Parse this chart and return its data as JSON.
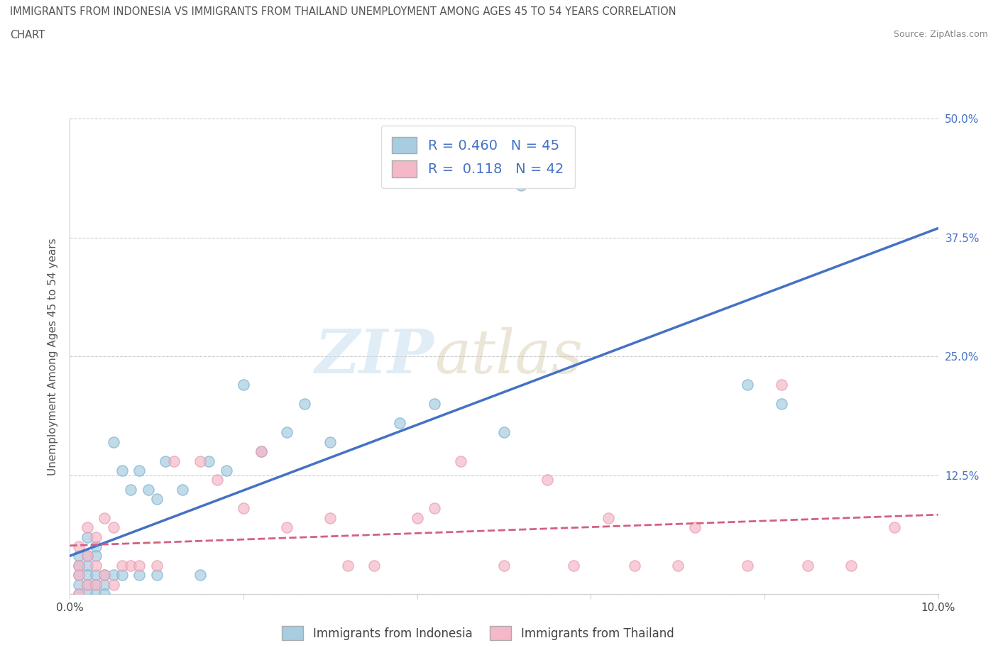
{
  "title_line1": "IMMIGRANTS FROM INDONESIA VS IMMIGRANTS FROM THAILAND UNEMPLOYMENT AMONG AGES 45 TO 54 YEARS CORRELATION",
  "title_line2": "CHART",
  "source": "Source: ZipAtlas.com",
  "ylabel_label": "Unemployment Among Ages 45 to 54 years",
  "xlim": [
    0.0,
    0.1
  ],
  "ylim": [
    0.0,
    0.5
  ],
  "xticks": [
    0.0,
    0.02,
    0.04,
    0.06,
    0.08,
    0.1
  ],
  "yticks": [
    0.0,
    0.125,
    0.25,
    0.375,
    0.5
  ],
  "ytick_labels": [
    "",
    "12.5%",
    "25.0%",
    "37.5%",
    "50.0%"
  ],
  "indonesia_color": "#a8cce0",
  "thailand_color": "#f4b8c8",
  "indonesia_edge_color": "#7ab0d0",
  "thailand_edge_color": "#e898b0",
  "indonesia_line_color": "#4472c4",
  "thailand_line_color": "#d46080",
  "legend_line1": "R = 0.460   N = 45",
  "legend_line2": "R =  0.118   N = 42",
  "watermark_zip": "ZIP",
  "watermark_atlas": "atlas",
  "indonesia_label": "Immigrants from Indonesia",
  "thailand_label": "Immigrants from Thailand",
  "indonesia_x": [
    0.001,
    0.001,
    0.001,
    0.001,
    0.001,
    0.002,
    0.002,
    0.002,
    0.002,
    0.002,
    0.002,
    0.003,
    0.003,
    0.003,
    0.003,
    0.003,
    0.004,
    0.004,
    0.004,
    0.005,
    0.005,
    0.006,
    0.006,
    0.007,
    0.008,
    0.008,
    0.009,
    0.01,
    0.01,
    0.011,
    0.013,
    0.015,
    0.016,
    0.018,
    0.02,
    0.022,
    0.025,
    0.027,
    0.03,
    0.038,
    0.042,
    0.05,
    0.052,
    0.078,
    0.082
  ],
  "indonesia_y": [
    0.04,
    0.03,
    0.02,
    0.01,
    0.0,
    0.06,
    0.04,
    0.03,
    0.02,
    0.01,
    0.0,
    0.05,
    0.04,
    0.02,
    0.01,
    0.0,
    0.02,
    0.01,
    0.0,
    0.16,
    0.02,
    0.13,
    0.02,
    0.11,
    0.13,
    0.02,
    0.11,
    0.1,
    0.02,
    0.14,
    0.11,
    0.02,
    0.14,
    0.13,
    0.22,
    0.15,
    0.17,
    0.2,
    0.16,
    0.18,
    0.2,
    0.17,
    0.43,
    0.22,
    0.2
  ],
  "thailand_x": [
    0.001,
    0.001,
    0.001,
    0.001,
    0.002,
    0.002,
    0.002,
    0.003,
    0.003,
    0.003,
    0.004,
    0.004,
    0.005,
    0.005,
    0.006,
    0.007,
    0.008,
    0.01,
    0.012,
    0.015,
    0.017,
    0.02,
    0.022,
    0.025,
    0.03,
    0.032,
    0.035,
    0.04,
    0.042,
    0.045,
    0.05,
    0.055,
    0.058,
    0.062,
    0.065,
    0.07,
    0.072,
    0.078,
    0.082,
    0.085,
    0.09,
    0.095
  ],
  "thailand_y": [
    0.05,
    0.03,
    0.02,
    0.0,
    0.07,
    0.04,
    0.01,
    0.06,
    0.03,
    0.01,
    0.08,
    0.02,
    0.07,
    0.01,
    0.03,
    0.03,
    0.03,
    0.03,
    0.14,
    0.14,
    0.12,
    0.09,
    0.15,
    0.07,
    0.08,
    0.03,
    0.03,
    0.08,
    0.09,
    0.14,
    0.03,
    0.12,
    0.03,
    0.08,
    0.03,
    0.03,
    0.07,
    0.03,
    0.22,
    0.03,
    0.03,
    0.07
  ]
}
